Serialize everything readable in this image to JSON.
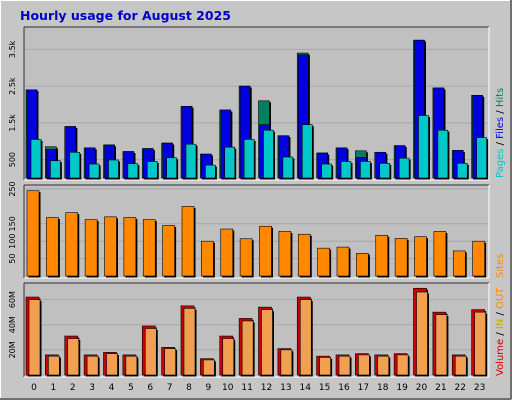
{
  "chart_data": [
    {
      "type": "bar",
      "title": "Hourly usage for August 2025",
      "legend": [
        {
          "label": "Pages",
          "color": "#00c8c8"
        },
        {
          "label": "Files",
          "color": "#0000e0"
        },
        {
          "label": "Hits",
          "color": "#008060"
        }
      ],
      "legend_placement": "right-vertical",
      "categories": [
        "0",
        "1",
        "2",
        "3",
        "4",
        "5",
        "6",
        "7",
        "8",
        "9",
        "10",
        "11",
        "12",
        "13",
        "14",
        "15",
        "16",
        "17",
        "18",
        "19",
        "20",
        "21",
        "22",
        "23"
      ],
      "y_tick_labels": [
        "500",
        "1.5k",
        "2.5k",
        "3.5k"
      ],
      "y_ticks": [
        500,
        1500,
        2500,
        3500
      ],
      "ylim": [
        0,
        4000
      ],
      "series": [
        {
          "name": "Hits",
          "color": "#008060",
          "values": [
            2400,
            850,
            1400,
            820,
            900,
            720,
            800,
            950,
            1950,
            650,
            1850,
            2500,
            2100,
            1150,
            3400,
            680,
            820,
            740,
            700,
            880,
            3750,
            2450,
            750,
            2250
          ]
        },
        {
          "name": "Files",
          "color": "#0000e0",
          "values": [
            2400,
            780,
            1400,
            820,
            900,
            720,
            800,
            950,
            1950,
            650,
            1850,
            2500,
            1450,
            1150,
            3350,
            680,
            820,
            560,
            700,
            880,
            3750,
            2450,
            750,
            2250
          ]
        },
        {
          "name": "Pages",
          "color": "#00c8c8",
          "values": [
            1050,
            470,
            700,
            380,
            490,
            390,
            450,
            550,
            920,
            350,
            840,
            1050,
            1300,
            570,
            1450,
            380,
            450,
            450,
            400,
            540,
            1700,
            1300,
            400,
            1100
          ]
        }
      ]
    },
    {
      "type": "bar",
      "legend": [
        {
          "label": "Sites",
          "color": "#ff8800"
        }
      ],
      "legend_placement": "right-vertical",
      "categories": [
        "0",
        "1",
        "2",
        "3",
        "4",
        "5",
        "6",
        "7",
        "8",
        "9",
        "10",
        "11",
        "12",
        "13",
        "14",
        "15",
        "16",
        "17",
        "18",
        "19",
        "20",
        "21",
        "22",
        "23"
      ],
      "y_tick_labels": [
        "50",
        "100",
        "150",
        "250"
      ],
      "y_ticks": [
        50,
        100,
        150,
        250
      ],
      "ylim": [
        0,
        250
      ],
      "series": [
        {
          "name": "Sites",
          "color": "#ff8800",
          "values": [
            245,
            168,
            182,
            162,
            170,
            168,
            162,
            145,
            200,
            100,
            135,
            107,
            143,
            128,
            120,
            80,
            83,
            65,
            117,
            108,
            113,
            128,
            72,
            100
          ]
        }
      ]
    },
    {
      "type": "bar",
      "legend": [
        {
          "label": "Volume",
          "color": "#cc0000"
        },
        {
          "label": "IN",
          "color": "#ccaa00"
        },
        {
          "label": "OUT",
          "color": "#ff8800"
        }
      ],
      "legend_separators": [
        "/"
      ],
      "legend_placement": "right-vertical",
      "categories": [
        "0",
        "1",
        "2",
        "3",
        "4",
        "5",
        "6",
        "7",
        "8",
        "9",
        "10",
        "11",
        "12",
        "13",
        "14",
        "15",
        "16",
        "17",
        "18",
        "19",
        "20",
        "21",
        "22",
        "23"
      ],
      "y_tick_labels": [
        "20M",
        "40M",
        "60M"
      ],
      "y_ticks": [
        20,
        40,
        60
      ],
      "ylim": [
        0,
        70
      ],
      "series": [
        {
          "name": "Volume",
          "color": "#cc0000",
          "values": [
            62,
            16,
            31,
            16,
            18,
            16,
            39,
            22,
            55,
            13,
            31,
            45,
            54,
            21,
            62,
            15,
            16,
            17,
            16,
            17,
            69,
            50,
            16,
            52
          ]
        },
        {
          "name": "OUT",
          "color": "#ff8800",
          "values": [
            60,
            15,
            29,
            15,
            17,
            15,
            37,
            21,
            53,
            12,
            29,
            43,
            52,
            20,
            60,
            14,
            15,
            16,
            15,
            16,
            66,
            48,
            15,
            50
          ]
        }
      ]
    }
  ]
}
